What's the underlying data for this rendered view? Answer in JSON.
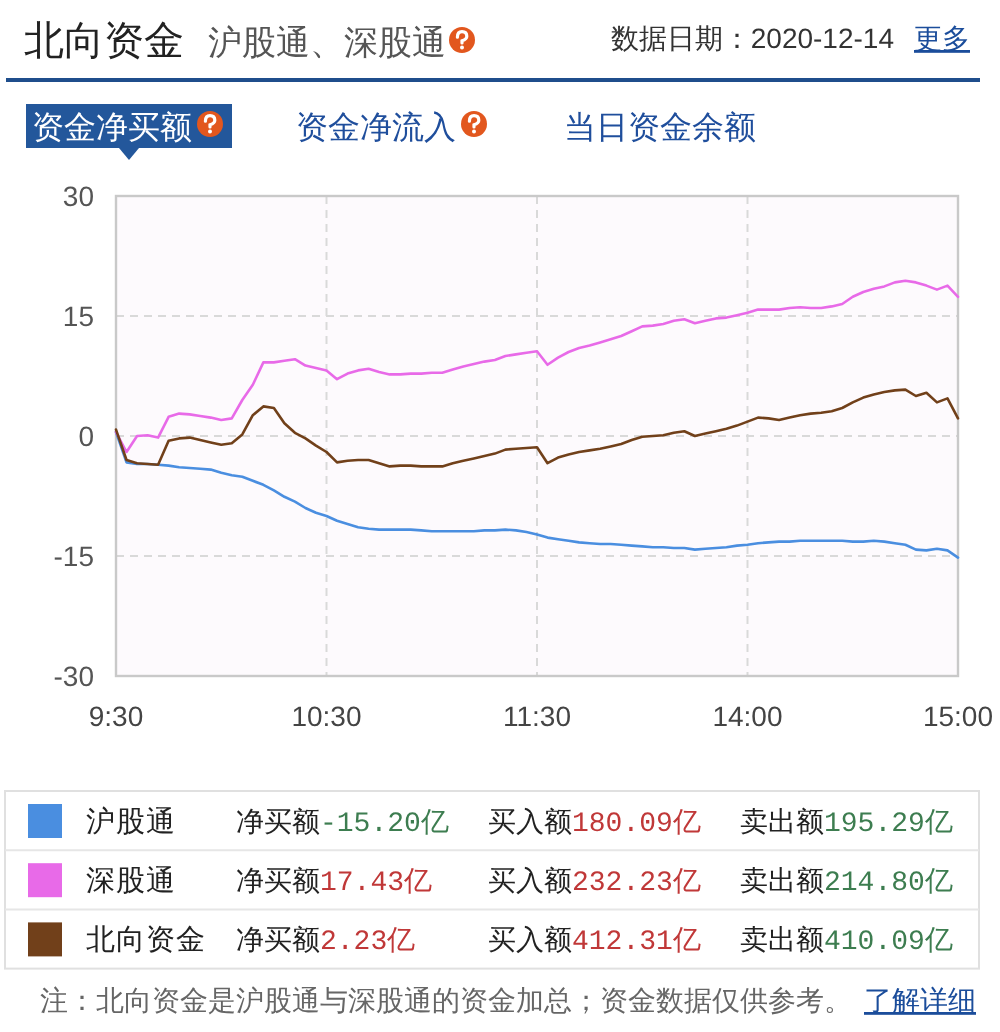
{
  "chart_data": {
    "type": "line",
    "title": "北向资金",
    "subtitle": "沪股通、深股通",
    "categories": [
      "9:30",
      null,
      null,
      null,
      null,
      null,
      null,
      null,
      null,
      null,
      null,
      null,
      null,
      null,
      null,
      null,
      null,
      null,
      null,
      null,
      "10:30",
      null,
      null,
      null,
      null,
      null,
      null,
      null,
      null,
      null,
      null,
      null,
      null,
      null,
      null,
      null,
      null,
      null,
      null,
      null,
      "11:30",
      null,
      null,
      null,
      null,
      null,
      null,
      null,
      null,
      null,
      null,
      null,
      null,
      null,
      null,
      null,
      null,
      null,
      null,
      null,
      "14:00",
      null,
      null,
      null,
      null,
      null,
      null,
      null,
      null,
      null,
      null,
      null,
      null,
      null,
      null,
      null,
      null,
      null,
      null,
      null,
      "15:00"
    ],
    "ylim": [
      -30,
      30
    ],
    "yticks": [
      -30,
      -15,
      0,
      15,
      30
    ],
    "grid": true,
    "legend": "bottom",
    "series": [
      {
        "name": "沪股通",
        "color": "#4a8ee0",
        "values": [
          0.5,
          -3.3,
          -3.5,
          -3.5,
          -3.6,
          -3.7,
          -3.9,
          -4.0,
          -4.1,
          -4.2,
          -4.6,
          -4.9,
          -5.1,
          -5.6,
          -6.1,
          -6.8,
          -7.6,
          -8.2,
          -9.0,
          -9.6,
          -10.0,
          -10.6,
          -11.0,
          -11.4,
          -11.6,
          -11.7,
          -11.7,
          -11.7,
          -11.7,
          -11.8,
          -11.9,
          -11.9,
          -11.9,
          -11.9,
          -11.9,
          -11.8,
          -11.8,
          -11.7,
          -11.8,
          -12.0,
          -12.3,
          -12.7,
          -12.9,
          -13.1,
          -13.3,
          -13.4,
          -13.5,
          -13.5,
          -13.6,
          -13.7,
          -13.8,
          -13.9,
          -13.9,
          -14.0,
          -14.0,
          -14.2,
          -14.1,
          -14.0,
          -13.9,
          -13.7,
          -13.6,
          -13.4,
          -13.3,
          -13.2,
          -13.2,
          -13.1,
          -13.1,
          -13.1,
          -13.1,
          -13.1,
          -13.2,
          -13.2,
          -13.1,
          -13.2,
          -13.4,
          -13.6,
          -14.2,
          -14.3,
          -14.1,
          -14.3,
          -15.2
        ]
      },
      {
        "name": "深股通",
        "color": "#e86ae8",
        "values": [
          0.5,
          -2.0,
          0.0,
          0.1,
          -0.2,
          2.4,
          2.8,
          2.7,
          2.5,
          2.3,
          2.0,
          2.2,
          4.5,
          6.4,
          9.2,
          9.2,
          9.4,
          9.6,
          8.8,
          8.5,
          8.2,
          7.1,
          7.8,
          8.2,
          8.4,
          8.0,
          7.7,
          7.7,
          7.8,
          7.8,
          7.9,
          7.9,
          8.3,
          8.7,
          9.0,
          9.3,
          9.5,
          10.0,
          10.2,
          10.4,
          10.6,
          8.9,
          9.8,
          10.5,
          11.0,
          11.3,
          11.7,
          12.1,
          12.5,
          13.1,
          13.7,
          13.8,
          14.0,
          14.4,
          14.6,
          14.1,
          14.4,
          14.7,
          14.8,
          15.1,
          15.4,
          15.8,
          15.8,
          15.8,
          16.0,
          16.1,
          16.0,
          16.0,
          16.2,
          16.5,
          17.4,
          18.0,
          18.4,
          18.7,
          19.2,
          19.4,
          19.2,
          18.8,
          18.3,
          18.8,
          17.4
        ]
      },
      {
        "name": "北向资金",
        "color": "#71401a",
        "values": [
          0.8,
          -3.0,
          -3.4,
          -3.5,
          -3.6,
          -0.6,
          -0.3,
          -0.2,
          -0.5,
          -0.8,
          -1.1,
          -0.9,
          0.2,
          2.6,
          3.7,
          3.5,
          1.6,
          0.4,
          -0.3,
          -1.2,
          -2.0,
          -3.3,
          -3.1,
          -3.0,
          -3.0,
          -3.4,
          -3.8,
          -3.7,
          -3.7,
          -3.8,
          -3.8,
          -3.8,
          -3.4,
          -3.1,
          -2.8,
          -2.5,
          -2.2,
          -1.7,
          -1.6,
          -1.5,
          -1.4,
          -3.4,
          -2.7,
          -2.3,
          -2.0,
          -1.8,
          -1.6,
          -1.3,
          -1.0,
          -0.5,
          -0.1,
          0.0,
          0.1,
          0.4,
          0.6,
          0.0,
          0.3,
          0.6,
          0.9,
          1.3,
          1.8,
          2.3,
          2.2,
          2.0,
          2.3,
          2.6,
          2.8,
          2.9,
          3.1,
          3.5,
          4.2,
          4.8,
          5.2,
          5.5,
          5.7,
          5.8,
          5.0,
          5.4,
          4.2,
          4.7,
          2.2
        ]
      }
    ],
    "annotations": [
      "数据日期：2020-12-14",
      "更多",
      "资金净买额",
      "资金净流入",
      "当日资金余额",
      "净买额",
      "-15.20亿",
      "买入额",
      "180.09亿",
      "卖出额",
      "195.29亿",
      "净买额",
      "17.43亿",
      "买入额",
      "232.23亿",
      "卖出额",
      "214.80亿",
      "净买额",
      "2.23亿",
      "买入额",
      "412.31亿",
      "卖出额",
      "410.09亿",
      "注：北向资金是沪股通与深股通的资金加总；资金数据仅供参考。",
      "了解详细"
    ]
  }
}
